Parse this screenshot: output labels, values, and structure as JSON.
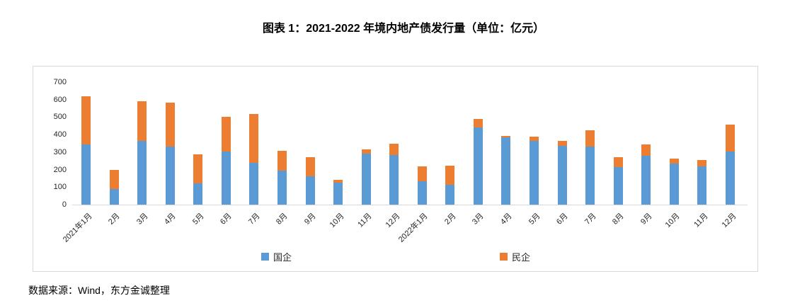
{
  "title": "图表 1：2021-2022 年境内地产债发行量（单位：亿元）",
  "source": "数据来源：Wind，东方金诚整理",
  "colors": {
    "soe_blue": "#5B9BD5",
    "poe_orange": "#ED7D31",
    "border_gray": "#D9D9D9"
  },
  "chart_data": {
    "type": "bar",
    "stacked": true,
    "title": "图表 1：2021-2022 年境内地产债发行量（单位：亿元）",
    "unit": "亿元",
    "categories": [
      "2021年1月",
      "2月",
      "3月",
      "4月",
      "5月",
      "6月",
      "7月",
      "8月",
      "9月",
      "10月",
      "11月",
      "12月",
      "2022年1月",
      "2月",
      "3月",
      "4月",
      "5月",
      "6月",
      "7月",
      "8月",
      "9月",
      "10月",
      "11月",
      "12月"
    ],
    "series": [
      {
        "name": "国企",
        "color": "#5B9BD5",
        "values": [
          345,
          90,
          365,
          330,
          120,
          305,
          240,
          195,
          160,
          125,
          290,
          285,
          135,
          115,
          440,
          385,
          365,
          335,
          330,
          215,
          280,
          235,
          220,
          305
        ]
      },
      {
        "name": "民企",
        "color": "#ED7D31",
        "values": [
          275,
          110,
          225,
          250,
          165,
          200,
          280,
          115,
          110,
          15,
          25,
          65,
          85,
          110,
          50,
          10,
          25,
          30,
          95,
          55,
          65,
          30,
          35,
          155
        ]
      }
    ],
    "ylim": [
      0,
      700
    ],
    "yticks": [
      0,
      100,
      200,
      300,
      400,
      500,
      600,
      700
    ],
    "grid": false,
    "legend_position": "bottom",
    "xlabel": "",
    "ylabel": ""
  }
}
